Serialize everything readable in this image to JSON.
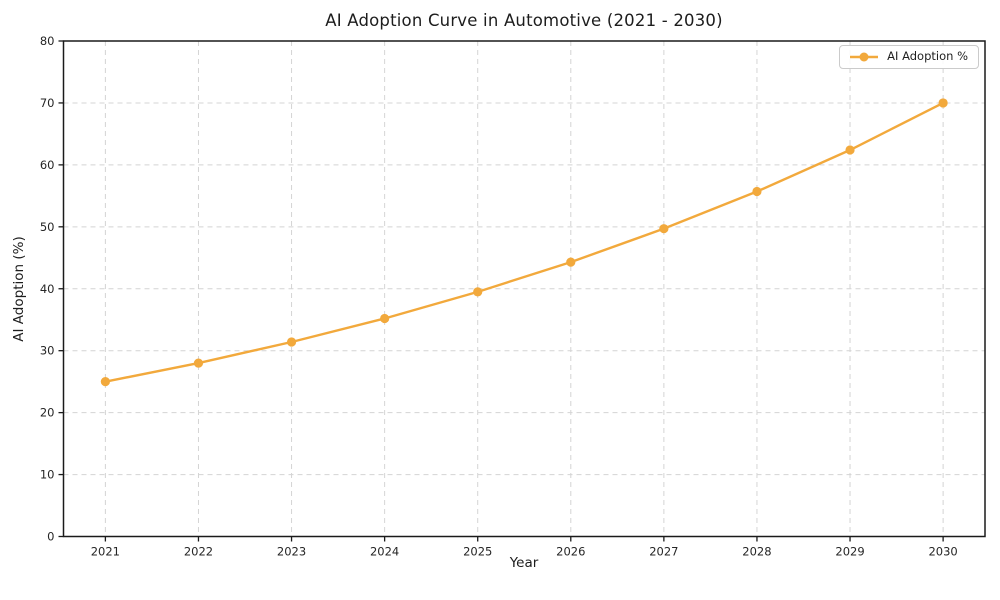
{
  "chart_data": {
    "type": "line",
    "title": "AI Adoption Curve in Automotive (2021 - 2030)",
    "xlabel": "Year",
    "ylabel": "AI Adoption (%)",
    "x": [
      2021,
      2022,
      2023,
      2024,
      2025,
      2026,
      2027,
      2028,
      2029,
      2030
    ],
    "series": [
      {
        "name": "AI Adoption %",
        "color": "#F2A93C",
        "marker": "circle",
        "values": [
          25.0,
          28.0,
          31.4,
          35.2,
          39.5,
          44.3,
          49.7,
          55.7,
          62.4,
          70.0
        ]
      }
    ],
    "ylim": [
      0,
      80
    ],
    "yticks": [
      0,
      10,
      20,
      30,
      40,
      50,
      60,
      70,
      80
    ],
    "grid": true,
    "grid_style": "dashed",
    "legend_position": "upper right"
  }
}
